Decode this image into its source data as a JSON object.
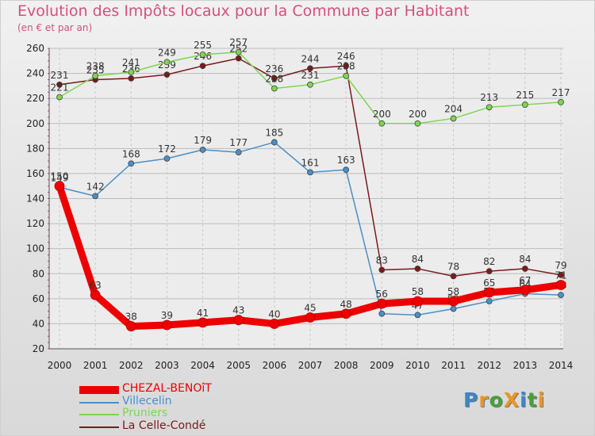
{
  "header": {
    "title": "Evolution des Impôts locaux pour la Commune par Habitant",
    "subtitle": "(en € et par an)"
  },
  "logo": {
    "text": "ProXiti",
    "letters": [
      "P",
      "r",
      "o",
      "X",
      "i",
      "t",
      "i"
    ],
    "colors": [
      "#3b86c9",
      "#e8962a",
      "#4a9e3f",
      "#e8962a",
      "#3b86c9",
      "#4a9e3f",
      "#e8962a"
    ]
  },
  "chart_data": {
    "type": "line",
    "title": "Evolution des Impôts locaux pour la Commune par Habitant",
    "subtitle": "(en € et par an)",
    "categories": [
      "2000",
      "2001",
      "2002",
      "2003",
      "2004",
      "2005",
      "2006",
      "2007",
      "2008",
      "2009",
      "2010",
      "2011",
      "2012",
      "2013",
      "2014"
    ],
    "ylim": [
      20,
      260
    ],
    "yticks": [
      20,
      40,
      60,
      80,
      100,
      120,
      140,
      160,
      180,
      200,
      220,
      240,
      260
    ],
    "grid": true,
    "legend_position": "bottom-left",
    "series": [
      {
        "name": "La Celle-Condé",
        "color": "#7a1a1a",
        "values": [
          231,
          235,
          236,
          239,
          246,
          252,
          236,
          244,
          246,
          83,
          84,
          78,
          82,
          84,
          79
        ]
      },
      {
        "name": "Pruniers",
        "color": "#7dd64e",
        "values": [
          221,
          238,
          241,
          249,
          255,
          257,
          228,
          231,
          238,
          200,
          200,
          204,
          213,
          215,
          217
        ]
      },
      {
        "name": "Villecelin",
        "color": "#4a8fc7",
        "values": [
          149,
          142,
          168,
          172,
          179,
          177,
          185,
          161,
          163,
          48,
          47,
          52,
          58,
          64,
          63
        ]
      },
      {
        "name": "CHEZAL-BENOîT",
        "color": "#ee0000",
        "values": [
          150,
          63,
          38,
          39,
          41,
          43,
          40,
          45,
          48,
          56,
          58,
          58,
          65,
          67,
          71
        ]
      }
    ],
    "legend": [
      "CHEZAL-BENOîT",
      "Villecelin",
      "Pruniers",
      "La Celle-Condé"
    ]
  }
}
